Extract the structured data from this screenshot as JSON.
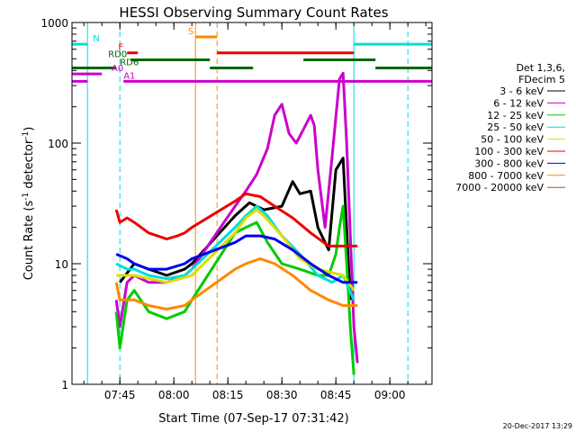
{
  "chart_data": {
    "type": "line",
    "title": "HESSI Observing Summary Count Rates",
    "xlabel": "Start Time (07-Sep-17 07:31:42)",
    "ylabel_main": "Count Rate (s",
    "ylabel_sup1": "-1",
    "ylabel_mid": " detector",
    "ylabel_sup2": "-1",
    "ylabel_end": ")",
    "yscale": "log",
    "xlim": [
      "07:31:42",
      "09:11:42"
    ],
    "ylim": [
      1,
      1000
    ],
    "x_ticks": [
      "07:45",
      "08:00",
      "08:15",
      "08:30",
      "08:45",
      "09:00"
    ],
    "y_ticks": [
      {
        "value": 1,
        "label": "1"
      },
      {
        "value": 10,
        "label": "10"
      },
      {
        "value": 100,
        "label": "100"
      },
      {
        "value": 1000,
        "label": "1000"
      }
    ],
    "legend_header": [
      "Det 1,3,6,",
      "FDecim 5"
    ],
    "series": [
      {
        "name": "3 - 6 keV",
        "color": "#000000",
        "x": [
          "07:45",
          "07:49",
          "07:53",
          "07:58",
          "08:03",
          "08:05",
          "08:17",
          "08:21",
          "08:25",
          "08:30",
          "08:33",
          "08:35",
          "08:38",
          "08:40",
          "08:43",
          "08:45",
          "08:47",
          "08:49"
        ],
        "y": [
          7,
          10,
          9,
          8,
          9,
          10,
          25,
          32,
          28,
          30,
          48,
          38,
          40,
          20,
          13,
          60,
          75,
          5
        ]
      },
      {
        "name": "6 - 12 keV",
        "color": "#cc00cc",
        "x": [
          "07:44",
          "07:45",
          "07:47",
          "07:49",
          "07:53",
          "07:58",
          "08:03",
          "08:05",
          "08:17",
          "08:20",
          "08:23",
          "08:26",
          "08:28",
          "08:30",
          "08:32",
          "08:34",
          "08:36",
          "08:38",
          "08:39",
          "08:40",
          "08:42",
          "08:44",
          "08:46",
          "08:47",
          "08:48",
          "08:50",
          "08:51"
        ],
        "y": [
          5,
          3,
          7,
          8,
          7,
          7,
          8,
          9,
          30,
          40,
          55,
          90,
          170,
          210,
          120,
          100,
          130,
          170,
          140,
          60,
          20,
          80,
          340,
          380,
          100,
          3,
          1.5
        ]
      },
      {
        "name": "12 - 25 keV",
        "color": "#00cc00",
        "x": [
          "07:44",
          "07:45",
          "07:47",
          "07:49",
          "07:53",
          "07:58",
          "08:03",
          "08:05",
          "08:17",
          "08:20",
          "08:23",
          "08:26",
          "08:30",
          "08:35",
          "08:40",
          "08:43",
          "08:45",
          "08:46",
          "08:47",
          "08:48",
          "08:49",
          "08:50"
        ],
        "y": [
          4,
          2,
          5,
          6,
          4,
          3.5,
          4,
          5,
          18,
          20,
          22,
          15,
          10,
          9,
          8,
          8,
          12,
          20,
          30,
          10,
          3,
          1.2
        ]
      },
      {
        "name": "25 - 50 keV",
        "color": "#00dddd",
        "x": [
          "07:44",
          "07:47",
          "07:49",
          "07:53",
          "07:58",
          "08:03",
          "08:05",
          "08:17",
          "08:20",
          "08:23",
          "08:26",
          "08:30",
          "08:35",
          "08:40",
          "08:44",
          "08:47",
          "08:50"
        ],
        "y": [
          10,
          9,
          9,
          8,
          7.5,
          8,
          9,
          20,
          25,
          30,
          25,
          17,
          12,
          8,
          7,
          8,
          5
        ]
      },
      {
        "name": "50 - 100 keV",
        "color": "#dddd00",
        "x": [
          "07:44",
          "07:49",
          "07:58",
          "08:05",
          "08:17",
          "08:20",
          "08:23",
          "08:25",
          "08:30",
          "08:35",
          "08:40",
          "08:47",
          "08:50"
        ],
        "y": [
          8,
          8,
          7,
          8,
          18,
          24,
          28,
          25,
          17,
          11,
          9,
          8,
          6
        ]
      },
      {
        "name": "100 - 300 keV",
        "color": "#ee0000",
        "x": [
          "07:44",
          "07:45",
          "07:47",
          "07:49",
          "07:53",
          "07:58",
          "08:01",
          "08:03",
          "08:05",
          "08:17",
          "08:20",
          "08:24",
          "08:28",
          "08:33",
          "08:38",
          "08:43",
          "08:47",
          "08:51"
        ],
        "y": [
          28,
          22,
          24,
          22,
          18,
          16,
          17,
          18,
          20,
          33,
          38,
          36,
          30,
          24,
          18,
          14,
          14,
          14
        ]
      },
      {
        "name": "300 - 800 keV",
        "color": "#0000ee",
        "x": [
          "07:44",
          "07:47",
          "07:49",
          "07:53",
          "07:58",
          "08:03",
          "08:05",
          "08:17",
          "08:20",
          "08:24",
          "08:28",
          "08:33",
          "08:38",
          "08:43",
          "08:47",
          "08:51"
        ],
        "y": [
          12,
          11,
          10,
          9,
          9,
          10,
          11,
          15,
          17,
          17,
          16,
          13,
          10,
          8,
          7,
          7
        ]
      },
      {
        "name": "800 - 7000 keV",
        "color": "#ff8800",
        "x": [
          "07:44",
          "07:45",
          "07:47",
          "07:49",
          "07:53",
          "07:58",
          "08:03",
          "08:05",
          "08:17",
          "08:20",
          "08:24",
          "08:28",
          "08:33",
          "08:38",
          "08:43",
          "08:47",
          "08:51"
        ],
        "y": [
          7,
          5,
          5,
          5,
          4.5,
          4.2,
          4.5,
          5,
          9,
          10,
          11,
          10,
          8,
          6,
          5,
          4.5,
          4.5
        ]
      },
      {
        "name": "7000 - 20000 keV",
        "color": "#996600",
        "x": [],
        "y": []
      }
    ],
    "flag_lines": [
      {
        "label": "N",
        "color": "#00dddd",
        "y": 660,
        "segments": [
          [
            "07:31:42",
            "07:36"
          ],
          [
            "08:50",
            "09:11:42"
          ]
        ]
      },
      {
        "label": "F",
        "color": "#ee0000",
        "y": 560,
        "segments": [
          [
            "07:47",
            "07:50"
          ],
          [
            "08:12",
            "08:50"
          ]
        ]
      },
      {
        "label": "RD0",
        "color": "#006600",
        "y": 490,
        "segments": [
          [
            "07:48",
            "08:10"
          ],
          [
            "08:36",
            "08:56"
          ]
        ]
      },
      {
        "label": "RD6",
        "color": "#006600",
        "y": 420,
        "segments": [
          [
            "07:31:42",
            "07:44"
          ],
          [
            "08:10",
            "08:22"
          ],
          [
            "08:56",
            "09:11:42"
          ]
        ]
      },
      {
        "label": "A0",
        "color": "#cc00cc",
        "y": 375,
        "segments": [
          [
            "07:31:42",
            "07:40"
          ]
        ]
      },
      {
        "label": "A1",
        "color": "#cc00cc",
        "y": 325,
        "segments": [
          [
            "07:31:42",
            "07:36"
          ],
          [
            "07:46",
            "09:11:42"
          ]
        ]
      },
      {
        "label": "S",
        "color": "#ff8800",
        "y": 760,
        "segments": [
          [
            "08:06",
            "08:12"
          ]
        ]
      }
    ],
    "vertical_lines": [
      {
        "time": "07:36",
        "color": "#00dddd",
        "style": "solid"
      },
      {
        "time": "07:45",
        "color": "#00dddd",
        "style": "dashed"
      },
      {
        "time": "08:06",
        "color": "#ff8800",
        "style": "solid"
      },
      {
        "time": "08:12",
        "color": "#ff8800",
        "style": "dashed"
      },
      {
        "time": "08:50",
        "color": "#00dddd",
        "style": "solid"
      },
      {
        "time": "09:05",
        "color": "#00dddd",
        "style": "dashed"
      }
    ],
    "grid": false,
    "legend_position": "right",
    "footer": "20-Dec-2017 13:29"
  }
}
